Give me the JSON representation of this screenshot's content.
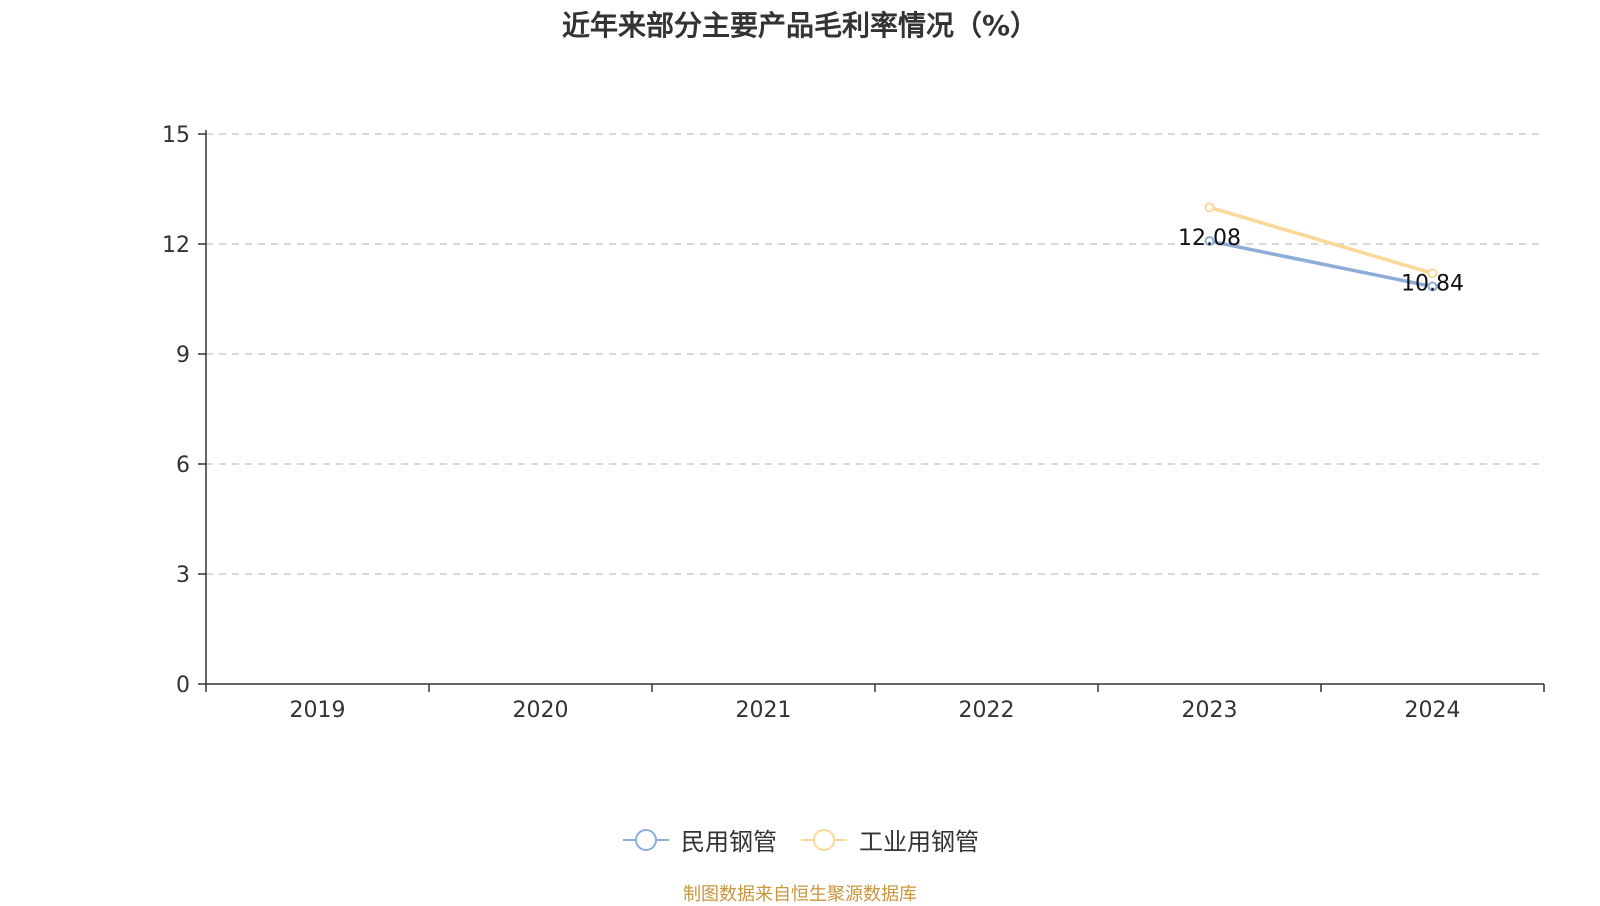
{
  "title": "近年来部分主要产品毛利率情况（%）",
  "source_note": "制图数据来自恒生聚源数据库",
  "colors": {
    "series_1": "#8eacd8",
    "series_2": "#f9d898",
    "grid": "#cccccc",
    "axis": "#333333"
  },
  "chart_data": {
    "type": "line",
    "categories": [
      "2019",
      "2020",
      "2021",
      "2022",
      "2023",
      "2024"
    ],
    "ylim": [
      0,
      15
    ],
    "yticks": [
      0,
      3,
      6,
      9,
      12,
      15
    ],
    "grid": true,
    "legend_position": "bottom",
    "series": [
      {
        "name": "民用钢管",
        "values": [
          null,
          null,
          null,
          null,
          12.08,
          10.84
        ],
        "labels": [
          "",
          "",
          "",
          "",
          "12.08",
          "10.84"
        ]
      },
      {
        "name": "工业用钢管",
        "values": [
          null,
          null,
          null,
          null,
          13.0,
          11.2
        ],
        "labels": [
          "",
          "",
          "",
          "",
          "",
          ""
        ]
      }
    ]
  }
}
